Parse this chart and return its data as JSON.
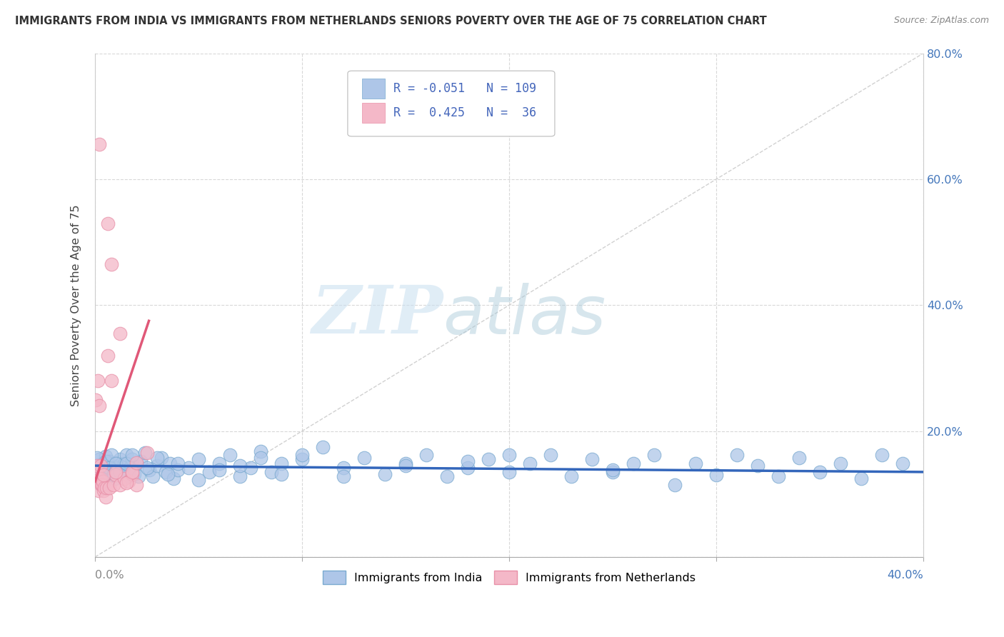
{
  "title": "IMMIGRANTS FROM INDIA VS IMMIGRANTS FROM NETHERLANDS SENIORS POVERTY OVER THE AGE OF 75 CORRELATION CHART",
  "source": "Source: ZipAtlas.com",
  "ylabel": "Seniors Poverty Over the Age of 75",
  "xlim": [
    0.0,
    0.4
  ],
  "ylim": [
    -0.02,
    0.82
  ],
  "plot_ylim": [
    0.0,
    0.8
  ],
  "xticks": [
    0.0,
    0.1,
    0.2,
    0.3,
    0.4
  ],
  "yticks": [
    0.0,
    0.2,
    0.4,
    0.6,
    0.8
  ],
  "xticklabels_left": [
    "0.0%",
    "",
    "",
    "",
    ""
  ],
  "xticklabels_right": [
    "",
    "",
    "",
    "",
    "40.0%"
  ],
  "yticklabels_right": [
    "",
    "20.0%",
    "40.0%",
    "60.0%",
    "80.0%"
  ],
  "india_color": "#aec6e8",
  "india_edge_color": "#7aaad0",
  "netherlands_color": "#f4b8c8",
  "netherlands_edge_color": "#e890a8",
  "india_R": -0.051,
  "india_N": 109,
  "netherlands_R": 0.425,
  "netherlands_N": 36,
  "india_trend_color": "#3366bb",
  "netherlands_trend_color": "#e05878",
  "diagonal_color": "#cccccc",
  "watermark_zip": "ZIP",
  "watermark_atlas": "atlas",
  "background_color": "#ffffff",
  "grid_color": "#d8d8d8",
  "legend_label_india": "Immigrants from India",
  "legend_label_netherlands": "Immigrants from Netherlands",
  "india_scatter_x": [
    0.0005,
    0.001,
    0.0015,
    0.002,
    0.0025,
    0.003,
    0.0035,
    0.004,
    0.0045,
    0.005,
    0.0055,
    0.006,
    0.0065,
    0.007,
    0.0075,
    0.008,
    0.0085,
    0.009,
    0.0095,
    0.01,
    0.011,
    0.012,
    0.013,
    0.014,
    0.015,
    0.016,
    0.017,
    0.018,
    0.019,
    0.02,
    0.022,
    0.024,
    0.026,
    0.028,
    0.03,
    0.032,
    0.034,
    0.036,
    0.038,
    0.04,
    0.045,
    0.05,
    0.055,
    0.06,
    0.065,
    0.07,
    0.075,
    0.08,
    0.085,
    0.09,
    0.1,
    0.11,
    0.12,
    0.13,
    0.14,
    0.15,
    0.16,
    0.17,
    0.18,
    0.19,
    0.2,
    0.21,
    0.22,
    0.23,
    0.24,
    0.25,
    0.26,
    0.27,
    0.28,
    0.29,
    0.3,
    0.31,
    0.32,
    0.33,
    0.34,
    0.35,
    0.36,
    0.37,
    0.38,
    0.39,
    0.001,
    0.002,
    0.003,
    0.004,
    0.005,
    0.006,
    0.007,
    0.008,
    0.009,
    0.01,
    0.012,
    0.015,
    0.018,
    0.021,
    0.025,
    0.03,
    0.035,
    0.04,
    0.05,
    0.06,
    0.07,
    0.08,
    0.09,
    0.1,
    0.12,
    0.15,
    0.18,
    0.2,
    0.25
  ],
  "india_scatter_y": [
    0.13,
    0.145,
    0.12,
    0.155,
    0.135,
    0.115,
    0.14,
    0.15,
    0.125,
    0.16,
    0.138,
    0.148,
    0.128,
    0.152,
    0.142,
    0.132,
    0.145,
    0.138,
    0.125,
    0.15,
    0.142,
    0.155,
    0.135,
    0.148,
    0.162,
    0.128,
    0.142,
    0.155,
    0.132,
    0.148,
    0.152,
    0.165,
    0.138,
    0.128,
    0.145,
    0.158,
    0.135,
    0.148,
    0.125,
    0.138,
    0.142,
    0.155,
    0.135,
    0.148,
    0.162,
    0.128,
    0.142,
    0.168,
    0.135,
    0.148,
    0.155,
    0.175,
    0.142,
    0.158,
    0.132,
    0.148,
    0.162,
    0.128,
    0.142,
    0.155,
    0.135,
    0.148,
    0.162,
    0.128,
    0.155,
    0.135,
    0.148,
    0.162,
    0.115,
    0.148,
    0.13,
    0.162,
    0.145,
    0.128,
    0.158,
    0.135,
    0.148,
    0.125,
    0.162,
    0.148,
    0.158,
    0.122,
    0.145,
    0.135,
    0.152,
    0.128,
    0.142,
    0.162,
    0.132,
    0.148,
    0.135,
    0.148,
    0.162,
    0.128,
    0.142,
    0.158,
    0.132,
    0.148,
    0.122,
    0.138,
    0.145,
    0.158,
    0.132,
    0.162,
    0.128,
    0.145,
    0.152,
    0.162,
    0.138
  ],
  "netherlands_scatter_x": [
    0.0003,
    0.0006,
    0.0009,
    0.0012,
    0.0015,
    0.0018,
    0.0021,
    0.0024,
    0.0027,
    0.003,
    0.0033,
    0.0036,
    0.004,
    0.0045,
    0.005,
    0.0055,
    0.006,
    0.007,
    0.008,
    0.009,
    0.01,
    0.012,
    0.014,
    0.016,
    0.018,
    0.02,
    0.002,
    0.004,
    0.006,
    0.008,
    0.01,
    0.012,
    0.015,
    0.018,
    0.02,
    0.025
  ],
  "netherlands_scatter_y": [
    0.25,
    0.13,
    0.145,
    0.12,
    0.28,
    0.105,
    0.24,
    0.125,
    0.145,
    0.115,
    0.115,
    0.12,
    0.105,
    0.11,
    0.095,
    0.11,
    0.32,
    0.11,
    0.28,
    0.115,
    0.13,
    0.115,
    0.125,
    0.12,
    0.132,
    0.115,
    0.655,
    0.13,
    0.53,
    0.465,
    0.135,
    0.355,
    0.118,
    0.135,
    0.15,
    0.165
  ]
}
